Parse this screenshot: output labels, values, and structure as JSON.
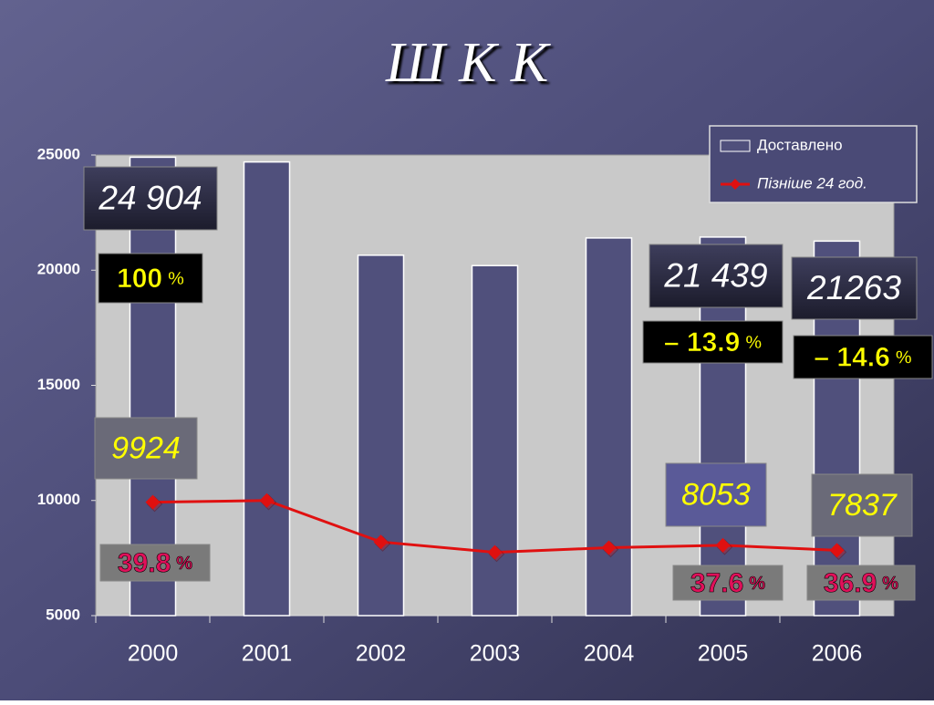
{
  "chart_data": {
    "type": "bar_line",
    "title": "Ш К К",
    "categories": [
      "2000",
      "2001",
      "2002",
      "2003",
      "2004",
      "2005",
      "2006"
    ],
    "series": [
      {
        "name": "Доставлено",
        "type": "bar",
        "color": "#50507c",
        "values": [
          24904,
          24700,
          20650,
          20200,
          21400,
          21439,
          21263
        ],
        "value_labels": [
          "24 904",
          null,
          null,
          null,
          null,
          "21 439",
          "21263"
        ]
      },
      {
        "name": "Пізніше 24 год.",
        "type": "line",
        "color": "#e01010",
        "values": [
          9924,
          10000,
          8200,
          7750,
          7950,
          8053,
          7837
        ],
        "value_labels": [
          "9924",
          null,
          null,
          null,
          null,
          "8053",
          "7837"
        ]
      }
    ],
    "annotations": [
      {
        "text": "100",
        "unit": "%"
      },
      {
        "text": "– 13.9",
        "unit": "%"
      },
      {
        "text": "– 14.6",
        "unit": "%"
      },
      {
        "text": "39.8",
        "unit": "%"
      },
      {
        "text": "37.6",
        "unit": "%"
      },
      {
        "text": "36.9",
        "unit": "%"
      }
    ],
    "ylim": [
      5000,
      25000
    ],
    "yticks": [
      5000,
      10000,
      15000,
      20000,
      25000
    ],
    "grid": false,
    "legend": "top-right"
  }
}
